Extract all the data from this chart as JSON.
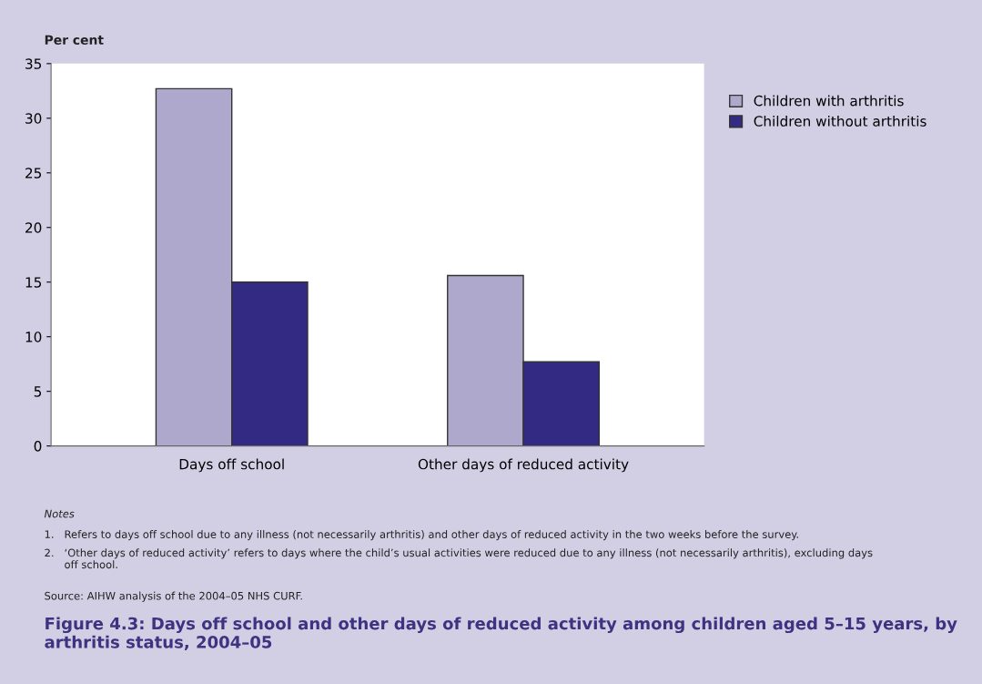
{
  "chart_data": {
    "type": "bar",
    "title": "Figure 4.3: Days off school and other days of reduced activity among children aged 5–15 years, by arthritis status, 2004–05",
    "ylabel": "Per cent",
    "categories": [
      "Days off school",
      "Other days of reduced activity"
    ],
    "series": [
      {
        "name": "Children with arthritis",
        "color": "#aea8cd",
        "values": [
          32.7,
          15.6
        ]
      },
      {
        "name": "Children without arthritis",
        "color": "#332a84",
        "values": [
          15.0,
          7.7
        ]
      }
    ],
    "ylim": [
      0,
      35
    ],
    "yticks": [
      0,
      5,
      10,
      15,
      20,
      25,
      30,
      35
    ],
    "grid": false,
    "legend": "right",
    "annotations": [
      "Notes",
      "1.   Refers to days off school due to any illness (not necessarily arthritis) and other days of reduced activity in the two weeks before the survey.",
      "2.   ‘Other days of reduced activity’ refers to days where the child’s usual activities were reduced due to any illness (not necessarily arthritis), excluding days\n      off school.",
      "Source: AIHW analysis of the 2004–05 NHS CURF."
    ]
  }
}
